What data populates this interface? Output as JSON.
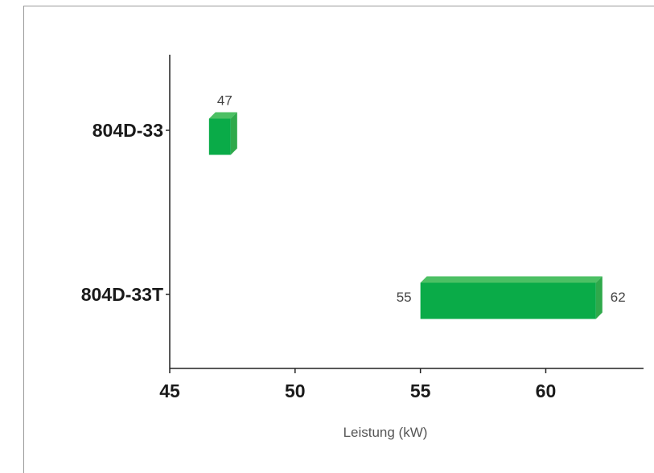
{
  "chart_data": {
    "type": "bar",
    "orientation": "horizontal",
    "title": "",
    "xlabel": "Leistung (kW)",
    "ylabel": "",
    "xlim": [
      45,
      63.9
    ],
    "xticks": [
      "45",
      "50",
      "55",
      "60"
    ],
    "categories": [
      "804D-33",
      "804D-33T"
    ],
    "ranges": [
      {
        "category": "804D-33",
        "start": 47,
        "end": 47,
        "start_label": "",
        "end_label": "47"
      },
      {
        "category": "804D-33T",
        "start": 55,
        "end": 62,
        "start_label": "55",
        "end_label": "62"
      }
    ],
    "grid": false,
    "legend": "none",
    "colors": {
      "bar_front": "#0aab48",
      "bar_top": "#4cc064",
      "bar_side": "#2fa94b",
      "axis": "#222222"
    }
  }
}
